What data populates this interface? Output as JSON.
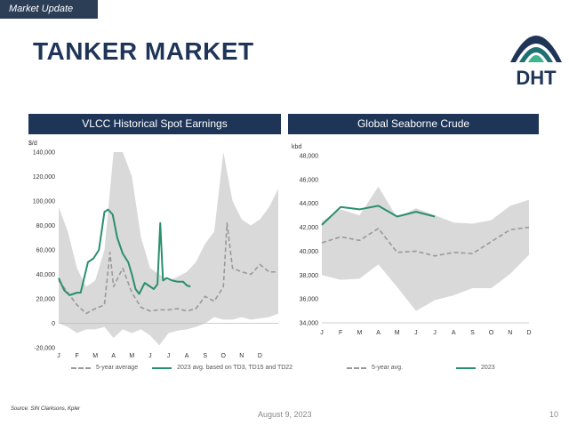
{
  "header": {
    "tag": "Market Update",
    "title": "TANKER MARKET",
    "logo_text": "DHT"
  },
  "colors": {
    "navy": "#1f3558",
    "green": "#2a8f6f",
    "band": "#d9d9d9",
    "avg": "#999999"
  },
  "footer": {
    "source": "Source: SIN Clarksons, Kpler",
    "date": "August 9, 2023",
    "page": "10"
  },
  "chart_data": [
    {
      "type": "line",
      "title": "VLCC Historical Spot Earnings",
      "ylabel": "$/d",
      "ylim": [
        -20000,
        140000
      ],
      "yticks": [
        "140,000",
        "120,000",
        "100,000",
        "80,000",
        "60,000",
        "40,000",
        "20,000",
        "0",
        "-20,000"
      ],
      "ytick_values": [
        140000,
        120000,
        100000,
        80000,
        60000,
        40000,
        20000,
        0,
        -20000
      ],
      "month_labels": [
        "J",
        "F",
        "M",
        "A",
        "M",
        "J",
        "J",
        "A",
        "S",
        "O",
        "N",
        "D"
      ],
      "xlim": [
        0,
        12
      ],
      "band": {
        "x": [
          0,
          0.5,
          1,
          1.5,
          2,
          2.5,
          3,
          3.5,
          4,
          4.5,
          5,
          5.5,
          6,
          6.5,
          7,
          7.5,
          8,
          8.5,
          9,
          9.5,
          10,
          10.5,
          11,
          11.5,
          12
        ],
        "upper": [
          95000,
          75000,
          45000,
          30000,
          35000,
          60000,
          140000,
          140000,
          120000,
          70000,
          45000,
          40000,
          35000,
          38000,
          42000,
          50000,
          65000,
          75000,
          140000,
          100000,
          85000,
          80000,
          85000,
          95000,
          110000
        ],
        "lower": [
          0,
          -3000,
          -8000,
          -5000,
          -5000,
          -3000,
          -12000,
          -5000,
          -8000,
          -5000,
          -10000,
          -18000,
          -8000,
          -6000,
          -5000,
          -3000,
          0,
          5000,
          3000,
          3000,
          5000,
          3000,
          4000,
          5000,
          8000
        ]
      },
      "series": [
        {
          "name": "5-year average",
          "x": [
            0,
            0.5,
            1,
            1.5,
            2,
            2.5,
            2.8,
            3,
            3.5,
            4,
            4.5,
            5,
            5.5,
            6,
            6.5,
            7,
            7.5,
            8,
            8.5,
            9,
            9.2,
            9.5,
            10,
            10.5,
            11,
            11.5,
            12
          ],
          "y": [
            35000,
            25000,
            15000,
            8000,
            12000,
            15000,
            58000,
            30000,
            45000,
            25000,
            13000,
            10000,
            11000,
            11000,
            12000,
            10000,
            12000,
            22000,
            18000,
            30000,
            82000,
            45000,
            42000,
            40000,
            48000,
            42000,
            42000
          ]
        },
        {
          "name": "2023 avg. based on TD3, TD15 and TD22",
          "x": [
            0,
            0.3,
            0.6,
            1,
            1.2,
            1.6,
            1.9,
            2.2,
            2.5,
            2.7,
            2.95,
            3.2,
            3.5,
            3.8,
            4,
            4.2,
            4.4,
            4.7,
            5,
            5.2,
            5.4,
            5.55,
            5.7,
            5.9,
            6.2,
            6.5,
            6.8,
            7,
            7.2
          ],
          "y": [
            37000,
            27000,
            23000,
            25000,
            25000,
            50000,
            53000,
            60000,
            91000,
            93000,
            89000,
            70000,
            57000,
            50000,
            40000,
            28000,
            24000,
            33000,
            30000,
            28000,
            32000,
            82000,
            35000,
            37000,
            35000,
            34000,
            34000,
            31000,
            30000
          ]
        }
      ],
      "legend": [
        "5-year average",
        "2023 avg. based on TD3, TD15 and TD22"
      ],
      "grid": false
    },
    {
      "type": "line",
      "title": "Global Seaborne Crude",
      "ylabel": "kbd",
      "ylim": [
        34000,
        48000
      ],
      "yticks": [
        "48,000",
        "46,000",
        "44,000",
        "42,000",
        "40,000",
        "38,000",
        "36,000",
        "34,000"
      ],
      "ytick_values": [
        48000,
        46000,
        44000,
        42000,
        40000,
        38000,
        36000,
        34000
      ],
      "month_labels": [
        "J",
        "F",
        "M",
        "A",
        "M",
        "J",
        "J",
        "A",
        "S",
        "O",
        "N",
        "D"
      ],
      "xlim": [
        0,
        11
      ],
      "band": {
        "x": [
          0,
          1,
          2,
          3,
          4,
          5,
          6,
          7,
          8,
          9,
          10,
          11
        ],
        "upper": [
          42500,
          43500,
          43000,
          45400,
          42800,
          43600,
          43000,
          42400,
          42300,
          42600,
          43800,
          44300
        ],
        "lower": [
          38000,
          37600,
          37700,
          38900,
          37000,
          35000,
          35900,
          36300,
          36900,
          36900,
          38100,
          39700
        ]
      },
      "series": [
        {
          "name": "5-year avg.",
          "x": [
            0,
            1,
            2,
            3,
            4,
            5,
            6,
            7,
            8,
            9,
            10,
            11
          ],
          "y": [
            40700,
            41200,
            40900,
            41900,
            39900,
            40000,
            39600,
            39900,
            39800,
            40800,
            41800,
            42000
          ]
        },
        {
          "name": "2023",
          "x": [
            0,
            1,
            2,
            3,
            4,
            5,
            6
          ],
          "y": [
            42200,
            43700,
            43500,
            43800,
            42900,
            43300,
            42900
          ]
        }
      ],
      "legend": [
        "5-year avg.",
        "2023"
      ],
      "grid": false
    }
  ]
}
